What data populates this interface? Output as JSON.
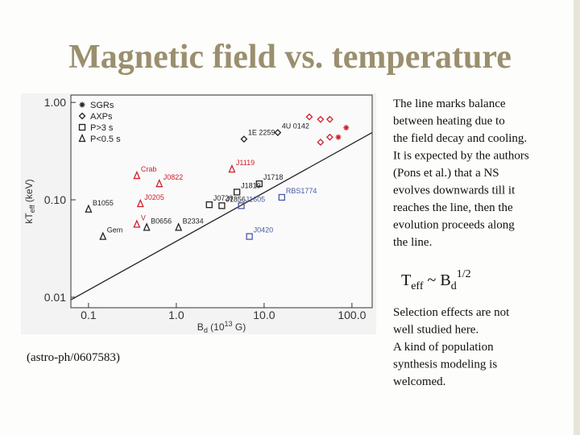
{
  "title": "Magnetic field vs. temperature",
  "chart_data": {
    "type": "scatter",
    "ylabel": [
      "kT",
      "eff",
      " (keV)"
    ],
    "xlabel": [
      "B",
      "d",
      " (10",
      "13",
      " G)"
    ],
    "log_x": true,
    "log_y": true,
    "xlim": [
      0.063,
      170
    ],
    "ylim": [
      0.0078,
      1.19
    ],
    "xticks": [
      0.1,
      {
        "value": 1,
        "label": "1.0"
      },
      {
        "value": 10,
        "label": "10.0"
      },
      {
        "value": 100,
        "label": "100.0"
      }
    ],
    "yticks": [
      {
        "value": 1,
        "label": "1.00"
      },
      {
        "value": 0.1,
        "label": "0.10"
      },
      0.01
    ],
    "legend": "upper left",
    "series": [
      {
        "name": "SGRs",
        "marker": "asterisk",
        "x": [
          86,
          70
        ],
        "values": [
          0.55,
          0.44
        ],
        "labels": [
          null,
          null
        ],
        "colors": [
          "#d0202a",
          "#d0202a"
        ]
      },
      {
        "name": "AXPs",
        "marker": "diamond",
        "x": [
          14.3,
          5.9,
          32.7,
          43.9,
          56,
          43.9,
          56
        ],
        "values": [
          0.49,
          0.42,
          0.71,
          0.67,
          0.44,
          0.39,
          0.67
        ],
        "labels": [
          "4U 0142",
          "1E 2259",
          null,
          null,
          null,
          null,
          null
        ],
        "colors": [
          "#222222",
          "#222222",
          "#d0202a",
          "#d0202a",
          "#d0202a",
          "#d0202a",
          "#d0202a"
        ]
      },
      {
        "name": "P>3 s",
        "marker": "square",
        "x": [
          8.8,
          4.9,
          15.9,
          2.37,
          5.5,
          3.3,
          6.8
        ],
        "values": [
          0.146,
          0.12,
          0.106,
          0.089,
          0.087,
          0.087,
          0.042
        ],
        "labels": [
          "J1718",
          "J1819",
          "RBS1774",
          "J0720",
          "J1605",
          "J1856",
          "J0420"
        ],
        "colors": [
          "#222222",
          "#222222",
          "#4a5aa8",
          "#222222",
          "#4a5aa8",
          "#222222",
          "#4a5aa8"
        ]
      },
      {
        "name": "P<0.5 s",
        "marker": "triangle",
        "x": [
          0.355,
          0.64,
          4.3,
          0.39,
          0.355,
          0.46,
          0.1,
          0.146,
          1.06
        ],
        "values": [
          0.177,
          0.146,
          0.206,
          0.091,
          0.056,
          0.052,
          0.08,
          0.042,
          0.052
        ],
        "labels": [
          "Crab",
          "J0822",
          "J1119",
          "J0205",
          "V",
          "B0656",
          "B1055",
          "Gem",
          "B2334"
        ],
        "colors": [
          "#d0202a",
          "#d0202a",
          "#d0202a",
          "#d0202a",
          "#d0202a",
          "#222222",
          "#222222",
          "#222222",
          "#222222"
        ]
      }
    ],
    "line": {
      "x": [
        0.063,
        170
      ],
      "values": [
        0.0094,
        0.49
      ],
      "color": "#222222"
    }
  },
  "caption": "(astro-ph/0607583)",
  "text1": [
    "The line marks balance",
    "between heating due to",
    "the field decay and cooling.",
    "It is expected by the authors",
    "(Pons et al.) that a NS",
    "evolves downwards till it",
    "reaches the line, then the",
    "evolution proceeds along",
    "the line."
  ],
  "formula": [
    "T",
    "eff",
    " ~ B",
    "d",
    "1/2"
  ],
  "text2": [
    "Selection effects are not",
    "well studied here.",
    "A kind of population",
    "synthesis modeling is",
    "welcomed."
  ]
}
